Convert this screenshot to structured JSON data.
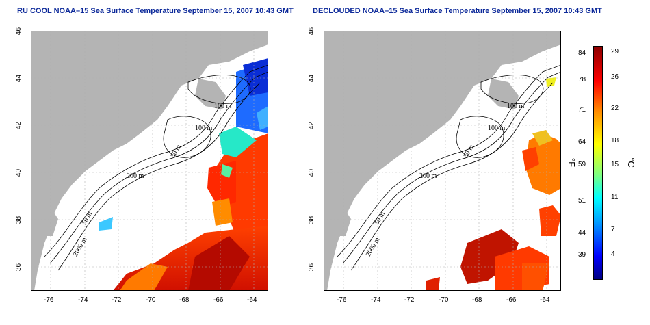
{
  "left_panel": {
    "title": "RU COOL NOAA–15 Sea Surface Temperature September 15, 2007 10:43 GMT"
  },
  "right_panel": {
    "title": "DECLOUDED NOAA–15 Sea Surface Temperature September 15, 2007 10:43 GMT"
  },
  "map_axes": {
    "lat_ticks": [
      "46",
      "44",
      "42",
      "40",
      "38",
      "36"
    ],
    "lon_ticks": [
      "-76",
      "-74",
      "-72",
      "-70",
      "-68",
      "-66",
      "-64"
    ],
    "lon_range": [
      -77.2,
      -63.2
    ],
    "lat_range": [
      35.0,
      46.0
    ]
  },
  "contour_labels": [
    "100 m",
    "100 m",
    "50 m",
    "200 m",
    "50 m",
    "2000 m"
  ],
  "colorbar": {
    "fahrenheit_label": "°F",
    "celsius_label": "°C",
    "fahrenheit_ticks": [
      "84",
      "78",
      "71",
      "64",
      "59",
      "51",
      "44",
      "39"
    ],
    "celsius_ticks": [
      "29",
      "26",
      "22",
      "18",
      "15",
      "11",
      "7",
      "4"
    ],
    "colors": [
      "#000080",
      "#0000ff",
      "#00a0ff",
      "#00ffff",
      "#7fff7f",
      "#ffff00",
      "#ff8c00",
      "#ff0000",
      "#8b0000"
    ]
  },
  "colors": {
    "land": "#b4b4b4",
    "water_no_data": "#ffffff",
    "title": "#0d2a9a",
    "grid": "#b0b0b0"
  }
}
